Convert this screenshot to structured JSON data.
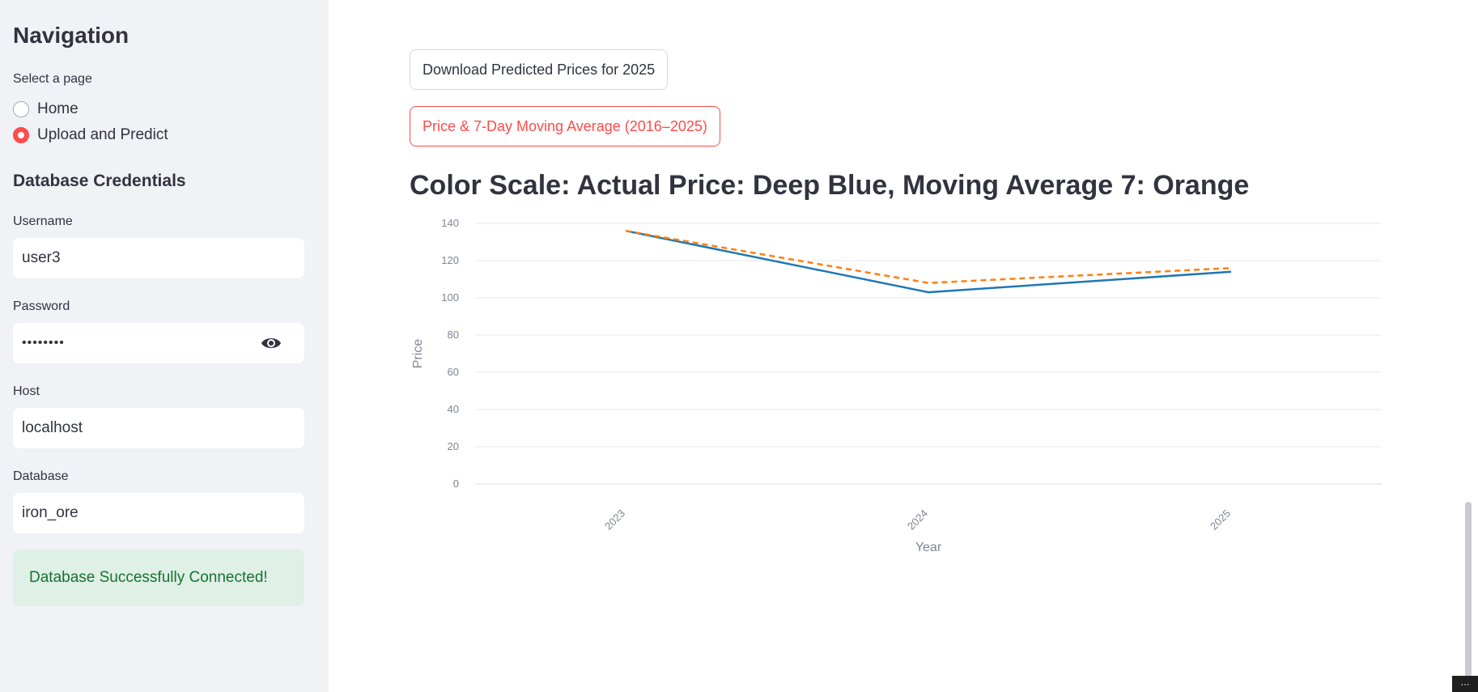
{
  "sidebar": {
    "title": "Navigation",
    "select_label": "Select a page",
    "pages": [
      {
        "label": "Home",
        "selected": false
      },
      {
        "label": "Upload and Predict",
        "selected": true
      }
    ],
    "credentials_title": "Database Credentials",
    "username_label": "Username",
    "username_value": "user3",
    "password_label": "Password",
    "password_value": "••••••••",
    "host_label": "Host",
    "host_value": "localhost",
    "database_label": "Database",
    "database_value": "iron_ore",
    "success_message": "Database Successfully Connected!",
    "eye_icon": "eye-icon"
  },
  "main": {
    "download_button": "Download Predicted Prices for 2025",
    "chart_button": "Price & 7-Day Moving Average (2016–2025)",
    "heading": "Color Scale: Actual Price: Deep Blue, Moving Average 7: Orange"
  },
  "colors": {
    "accent": "#ff4b4b",
    "actual": "#1f77b4",
    "moving_average": "#ff7f0e",
    "success_bg": "#dff0e6",
    "success_text": "#177233"
  },
  "chart_data": {
    "type": "line",
    "x": [
      "2023",
      "2024",
      "2025"
    ],
    "xlabel": "Year",
    "ylabel": "Price",
    "ylim": [
      0,
      140
    ],
    "yticks": [
      0,
      20,
      40,
      60,
      80,
      100,
      120,
      140
    ],
    "grid": true,
    "series": [
      {
        "values": [
          136,
          103,
          114
        ],
        "color": "#1f77b4",
        "dash": "solid"
      },
      {
        "values": [
          136,
          108,
          116
        ],
        "color": "#ff7f0e",
        "dash": "dashed"
      }
    ]
  }
}
